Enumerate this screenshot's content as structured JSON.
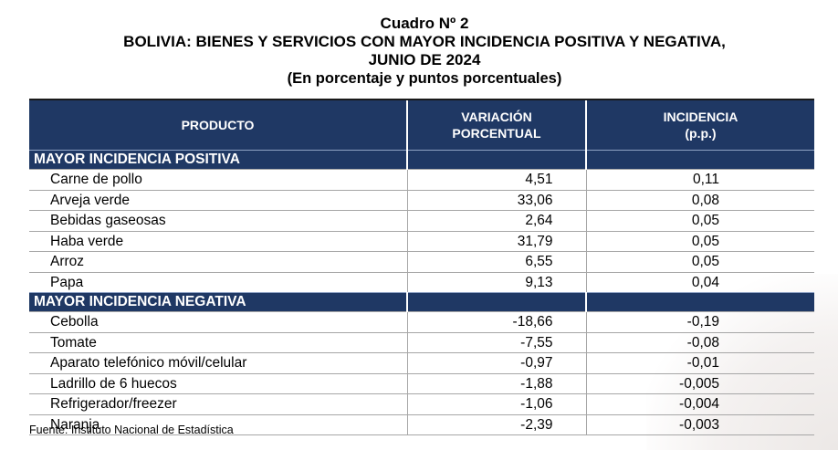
{
  "title": {
    "line1": "Cuadro Nº 2",
    "line2": "BOLIVIA: BIENES Y SERVICIOS CON MAYOR INCIDENCIA POSITIVA Y NEGATIVA,",
    "line3": "JUNIO DE 2024",
    "line4": "(En porcentaje y puntos porcentuales)"
  },
  "headers": {
    "producto": "PRODUCTO",
    "variacion_1": "VARIACIÓN",
    "variacion_2": "PORCENTUAL",
    "incidencia_1": "INCIDENCIA",
    "incidencia_2": "(p.p.)"
  },
  "positive": {
    "label": "MAYOR INCIDENCIA POSITIVA",
    "rows": [
      {
        "producto": "Carne de pollo",
        "variacion": "4,51",
        "incidencia": "0,11"
      },
      {
        "producto": "Arveja verde",
        "variacion": "33,06",
        "incidencia": "0,08"
      },
      {
        "producto": "Bebidas gaseosas",
        "variacion": "2,64",
        "incidencia": "0,05"
      },
      {
        "producto": "Haba verde",
        "variacion": "31,79",
        "incidencia": "0,05"
      },
      {
        "producto": "Arroz",
        "variacion": "6,55",
        "incidencia": "0,05"
      },
      {
        "producto": "Papa",
        "variacion": "9,13",
        "incidencia": "0,04"
      }
    ]
  },
  "negative": {
    "label": "MAYOR INCIDENCIA NEGATIVA",
    "rows": [
      {
        "producto": "Cebolla",
        "variacion": "-18,66",
        "incidencia": "-0,19"
      },
      {
        "producto": "Tomate",
        "variacion": "-7,55",
        "incidencia": "-0,08"
      },
      {
        "producto": "Aparato telefónico móvil/celular",
        "variacion": "-0,97",
        "incidencia": "-0,01"
      },
      {
        "producto": "Ladrillo de 6 huecos",
        "variacion": "-1,88",
        "incidencia": "-0,005"
      },
      {
        "producto": "Refrigerador/freezer",
        "variacion": "-1,06",
        "incidencia": "-0,004"
      },
      {
        "producto": "Naranja",
        "variacion": "-2,39",
        "incidencia": "-0,003"
      }
    ]
  },
  "source": "Fuente: Instituto Nacional de Estadística",
  "colors": {
    "header_bg": "#1f3864",
    "header_text": "#ffffff"
  }
}
